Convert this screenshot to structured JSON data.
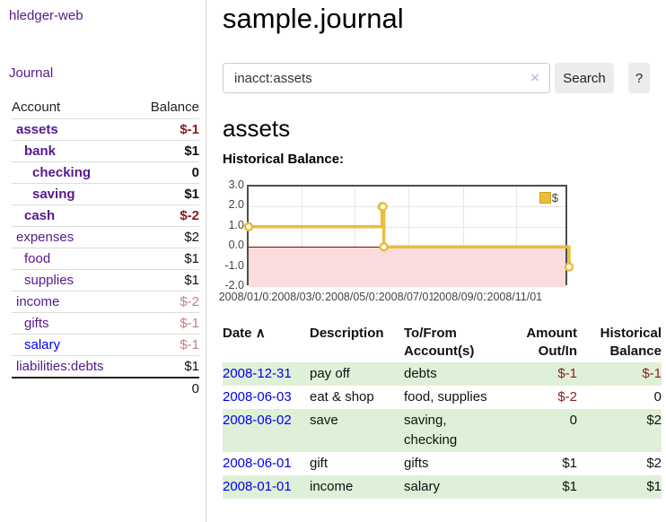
{
  "app": {
    "brand": "hledger-web",
    "nav_journal": "Journal"
  },
  "sidebar": {
    "header": {
      "account": "Account",
      "balance": "Balance"
    },
    "accounts": [
      {
        "name": "assets",
        "balance": "$-1",
        "indent": 0,
        "bold": true,
        "neg": "strong"
      },
      {
        "name": "bank",
        "balance": "$1",
        "indent": 1,
        "bold": true,
        "neg": "none"
      },
      {
        "name": "checking",
        "balance": "0",
        "indent": 2,
        "bold": true,
        "neg": "none"
      },
      {
        "name": "saving",
        "balance": "$1",
        "indent": 2,
        "bold": true,
        "neg": "none"
      },
      {
        "name": "cash",
        "balance": "$-2",
        "indent": 1,
        "bold": true,
        "neg": "strong"
      },
      {
        "name": "expenses",
        "balance": "$2",
        "indent": 0,
        "bold": false,
        "neg": "none"
      },
      {
        "name": "food",
        "balance": "$1",
        "indent": 1,
        "bold": false,
        "neg": "none"
      },
      {
        "name": "supplies",
        "balance": "$1",
        "indent": 1,
        "bold": false,
        "neg": "none"
      },
      {
        "name": "income",
        "balance": "$-2",
        "indent": 0,
        "bold": false,
        "neg": "muted"
      },
      {
        "name": "gifts",
        "balance": "$-1",
        "indent": 1,
        "bold": false,
        "neg": "muted"
      },
      {
        "name": "salary",
        "balance": "$-1",
        "indent": 1,
        "bold": false,
        "neg": "muted",
        "link": "blue"
      },
      {
        "name": "liabilities:debts",
        "balance": "$1",
        "indent": 0,
        "bold": false,
        "neg": "none"
      }
    ],
    "total": "0"
  },
  "main": {
    "title": "sample.journal",
    "search": {
      "value": "inacct:assets",
      "clear_icon": "×",
      "button": "Search",
      "help": "?"
    },
    "account_heading": "assets",
    "chart_heading": "Historical Balance:"
  },
  "chart_data": {
    "type": "line",
    "title": "Historical Balance",
    "series": [
      {
        "name": "$",
        "color": "#e9bd3e",
        "points": [
          [
            "2008-01-01",
            1
          ],
          [
            "2008-06-01",
            2
          ],
          [
            "2008-06-02",
            2
          ],
          [
            "2008-06-03",
            0
          ],
          [
            "2008-12-31",
            -1
          ]
        ],
        "style": "step-after"
      }
    ],
    "x_ticks": [
      "2008/01/01",
      "2008/03/01",
      "2008/05/01",
      "2008/07/01",
      "2008/09/01",
      "2008/11/01"
    ],
    "y_ticks": [
      "3.0",
      "2.0",
      "1.0",
      "0.0",
      "-1.0",
      "-2.0"
    ],
    "xlim": [
      "2008-01-01",
      "2008-12-31"
    ],
    "ylim": [
      -2,
      3
    ],
    "grid": true,
    "legend": {
      "label": "$",
      "position": "top-right"
    },
    "negative_region_color": "#fbdcdc",
    "zero_line_color": "#8b0000"
  },
  "table": {
    "headers": {
      "date": "Date",
      "sort_icon": "∧",
      "description": "Description",
      "tofrom": "To/From Account(s)",
      "amount": "Amount Out/In",
      "balance": "Historical Balance"
    },
    "rows": [
      {
        "date": "2008-12-31",
        "description": "pay off",
        "accounts": "debts",
        "amount": "$-1",
        "amount_neg": true,
        "balance": "$-1",
        "balance_neg": true,
        "green": true
      },
      {
        "date": "2008-06-03",
        "description": "eat & shop",
        "accounts": "food, supplies",
        "amount": "$-2",
        "amount_neg": true,
        "balance": "0",
        "balance_neg": false,
        "green": false
      },
      {
        "date": "2008-06-02",
        "description": "save",
        "accounts": "saving, checking",
        "amount": "0",
        "amount_neg": false,
        "balance": "$2",
        "balance_neg": false,
        "green": true
      },
      {
        "date": "2008-06-01",
        "description": "gift",
        "accounts": "gifts",
        "amount": "$1",
        "amount_neg": false,
        "balance": "$2",
        "balance_neg": false,
        "green": false
      },
      {
        "date": "2008-01-01",
        "description": "income",
        "accounts": "salary",
        "amount": "$1",
        "amount_neg": false,
        "balance": "$1",
        "balance_neg": false,
        "green": true
      }
    ]
  }
}
